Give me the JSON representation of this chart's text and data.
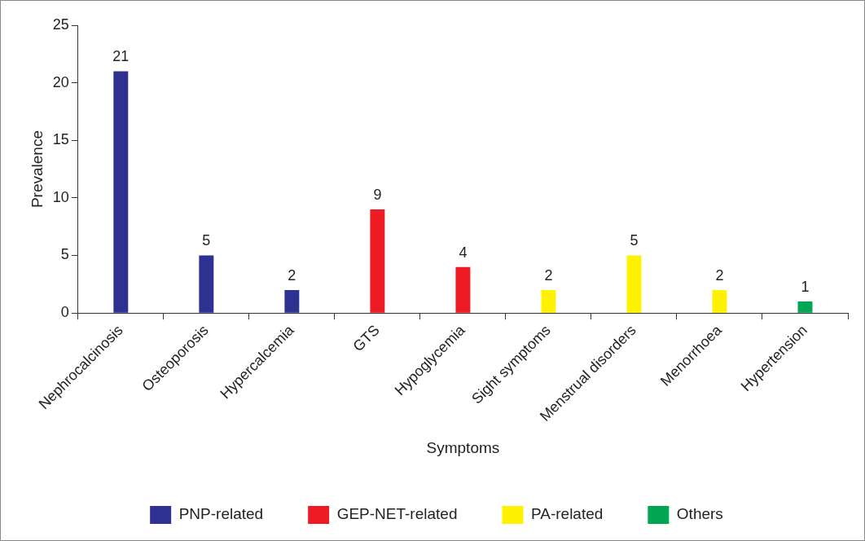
{
  "chart_data": {
    "type": "bar",
    "xlabel": "Symptoms",
    "ylabel": "Prevalence",
    "categories": [
      "Nephrocalcinosis",
      "Osteoporosis",
      "Hypercalcemia",
      "GTS",
      "Hypoglycemia",
      "Sight symptoms",
      "Menstrual disorders",
      "Menorrhoea",
      "Hypertension"
    ],
    "series": [
      {
        "name": "PNP-related",
        "color": "#2e3192",
        "values": [
          21,
          5,
          2,
          null,
          null,
          null,
          null,
          null,
          null
        ]
      },
      {
        "name": "GEP-NET-related",
        "color": "#ed1c24",
        "values": [
          null,
          null,
          null,
          9,
          4,
          null,
          null,
          null,
          null
        ]
      },
      {
        "name": "PA-related",
        "color": "#fff200",
        "values": [
          null,
          null,
          null,
          null,
          null,
          2,
          5,
          2,
          null
        ]
      },
      {
        "name": "Others",
        "color": "#00a651",
        "values": [
          null,
          null,
          null,
          null,
          null,
          null,
          null,
          null,
          1
        ]
      }
    ],
    "ylim": [
      0,
      25
    ],
    "yticks": [
      0,
      5,
      10,
      15,
      20,
      25
    ],
    "grid": false,
    "legend": "bottom",
    "data_labels": true
  }
}
